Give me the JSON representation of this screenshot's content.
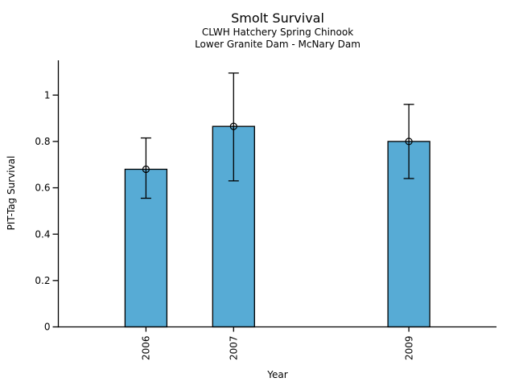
{
  "chart_data": {
    "type": "bar",
    "title": "Smolt Survival",
    "subtitle_lines": [
      "CLWH Hatchery Spring Chinook",
      "Lower Granite Dam - McNary Dam"
    ],
    "xlabel": "Year",
    "ylabel": "PIT-Tag Survival",
    "categories": [
      "2006",
      "2007",
      "2009"
    ],
    "x_numeric": [
      2006,
      2007,
      2009
    ],
    "values": [
      0.68,
      0.865,
      0.8
    ],
    "error_low": [
      0.555,
      0.63,
      0.64
    ],
    "error_high": [
      0.815,
      1.095,
      0.96
    ],
    "yticks": [
      0,
      0.2,
      0.4,
      0.6,
      0.8,
      1
    ],
    "ytick_labels": [
      "0",
      "0.2",
      "0.4",
      "0.6",
      "0.8",
      "1"
    ],
    "ylim": [
      0,
      1.15
    ],
    "xlim": [
      2005,
      2010
    ],
    "grid": false,
    "legend": "none",
    "marker": "open-circle",
    "bar_color": "#57ABD5",
    "bar_edge_color": "#000000",
    "axis_color": "#000000",
    "xtick_label_rotation_deg": -90
  }
}
